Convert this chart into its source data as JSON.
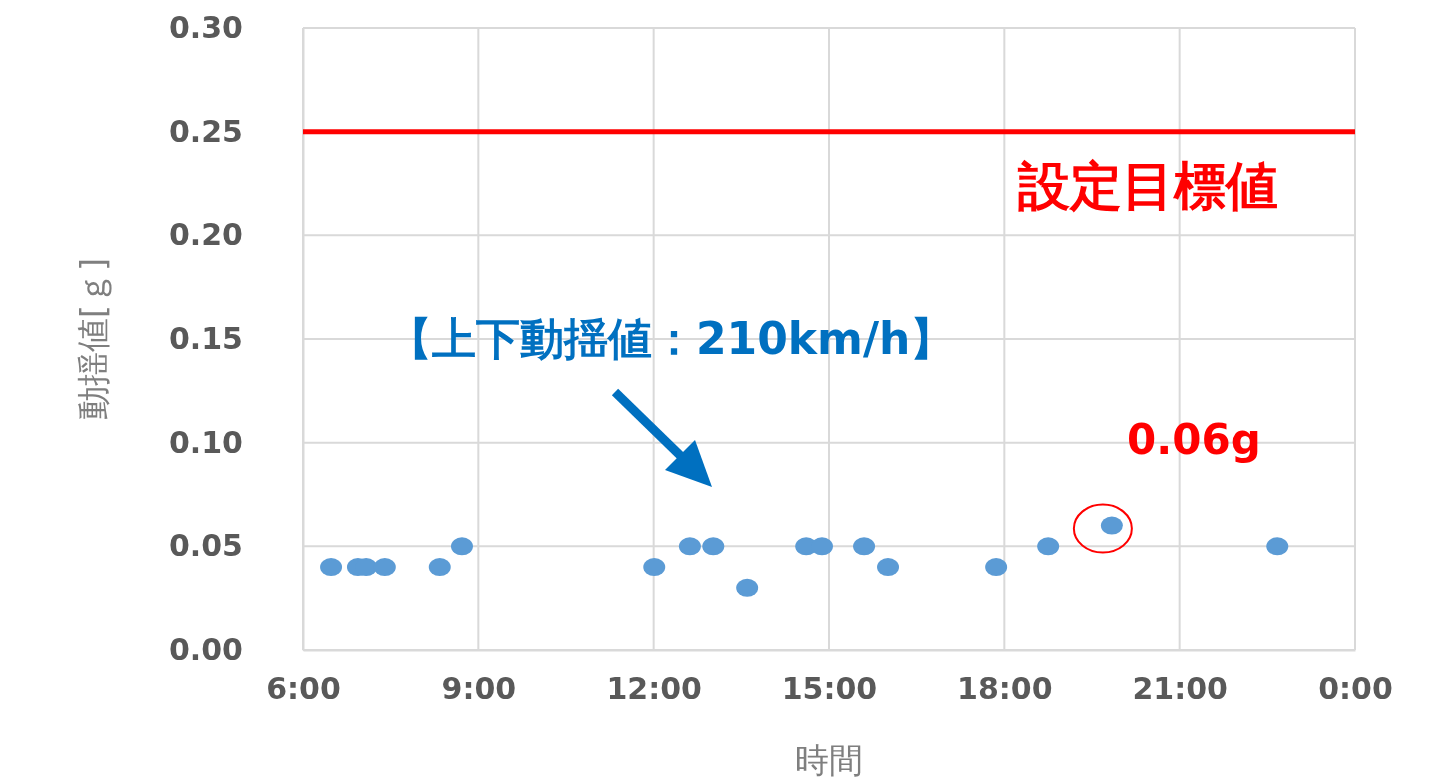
{
  "chart_data": {
    "type": "scatter",
    "xlabel": "時間",
    "ylabel": "動揺値[ｇ]",
    "x": [
      6.48,
      6.94,
      7.08,
      7.4,
      8.34,
      8.72,
      12.01,
      12.62,
      13.02,
      13.6,
      14.61,
      14.88,
      15.6,
      16.01,
      17.86,
      18.75,
      19.84,
      22.67
    ],
    "series": [
      {
        "color": "#5b9bd5",
        "values": [
          0.04,
          0.04,
          0.04,
          0.04,
          0.04,
          0.05,
          0.04,
          0.05,
          0.05,
          0.03,
          0.05,
          0.05,
          0.05,
          0.04,
          0.04,
          0.05,
          0.06,
          0.05
        ]
      }
    ],
    "xlim": [
      6,
      24
    ],
    "xticks": [
      {
        "value": 6,
        "label": "6:00"
      },
      {
        "value": 9,
        "label": "9:00"
      },
      {
        "value": 12,
        "label": "12:00"
      },
      {
        "value": 15,
        "label": "15:00"
      },
      {
        "value": 18,
        "label": "18:00"
      },
      {
        "value": 21,
        "label": "21:00"
      },
      {
        "value": 24,
        "label": "0:00"
      }
    ],
    "ylim": [
      0,
      0.3
    ],
    "yticks": [
      {
        "value": 0,
        "label": "0.00"
      },
      {
        "value": 0.05,
        "label": "0.05"
      },
      {
        "value": 0.1,
        "label": "0.10"
      },
      {
        "value": 0.15,
        "label": "0.15"
      },
      {
        "value": 0.2,
        "label": "0.20"
      },
      {
        "value": 0.25,
        "label": "0.25"
      },
      {
        "value": 0.3,
        "label": "0.30"
      }
    ],
    "ref_lines": [
      {
        "axis": "y",
        "value": 0.25,
        "label": "設定目標値",
        "color": "#ff0000"
      }
    ],
    "annotations": [
      "【上下動揺値：210km/h】",
      {
        "text": "0.06g",
        "x": 19.84,
        "y": 0.06
      }
    ],
    "grid": true,
    "marker": "circle"
  }
}
